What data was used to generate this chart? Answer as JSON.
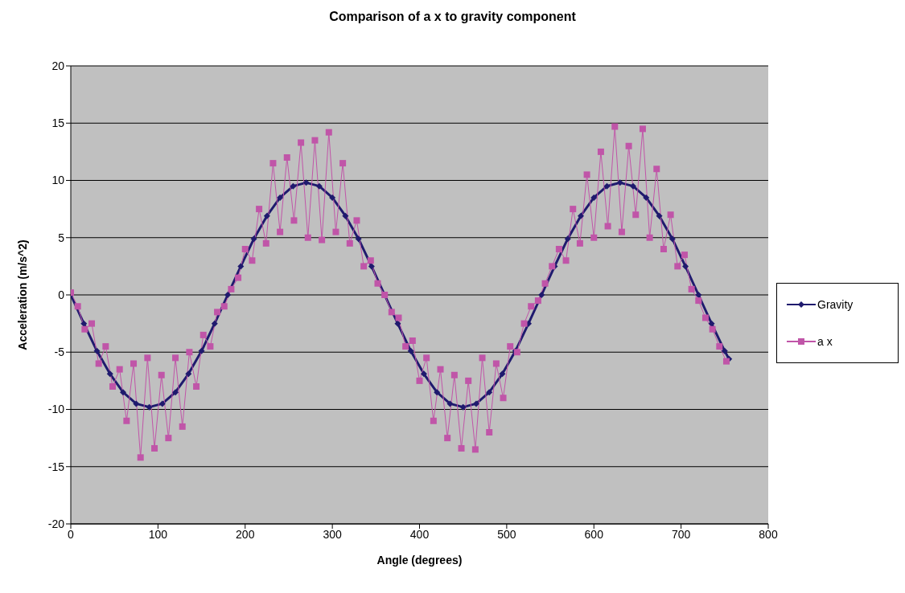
{
  "chart_data": {
    "type": "line",
    "title": "Comparison of a x to gravity component",
    "xlabel": "Angle (degrees)",
    "ylabel": "Acceleration (m/s^2)",
    "xlim": [
      0,
      800
    ],
    "xticks": [
      0,
      100,
      200,
      300,
      400,
      500,
      600,
      700,
      800
    ],
    "ylim": [
      -20,
      20
    ],
    "yticks": [
      -20,
      -15,
      -10,
      -5,
      0,
      5,
      10,
      15,
      20
    ],
    "grid": "y",
    "legend": "right",
    "series": [
      {
        "name": "Gravity",
        "color": "#1f1a6e",
        "marker": "diamond",
        "x": [
          0,
          15,
          30,
          45,
          60,
          75,
          90,
          105,
          120,
          135,
          150,
          165,
          180,
          195,
          210,
          225,
          240,
          255,
          270,
          285,
          300,
          315,
          330,
          345,
          360,
          375,
          390,
          405,
          420,
          435,
          450,
          465,
          480,
          495,
          510,
          525,
          540,
          555,
          570,
          585,
          600,
          615,
          630,
          645,
          660,
          675,
          690,
          705,
          720,
          735,
          750,
          755
        ],
        "values": [
          0,
          -2.5,
          -4.9,
          -6.9,
          -8.5,
          -9.5,
          -9.8,
          -9.5,
          -8.5,
          -6.9,
          -4.9,
          -2.5,
          0,
          2.5,
          4.9,
          6.9,
          8.5,
          9.5,
          9.8,
          9.5,
          8.5,
          6.9,
          4.9,
          2.5,
          0,
          -2.5,
          -4.9,
          -6.9,
          -8.5,
          -9.5,
          -9.8,
          -9.5,
          -8.5,
          -6.9,
          -4.9,
          -2.5,
          0,
          2.5,
          4.9,
          6.9,
          8.5,
          9.5,
          9.8,
          9.5,
          8.5,
          6.9,
          4.9,
          2.5,
          0,
          -2.5,
          -4.9,
          -5.6
        ]
      },
      {
        "name": "a x",
        "color": "#c055a8",
        "marker": "square",
        "x": [
          0,
          8,
          16,
          24,
          32,
          40,
          48,
          56,
          64,
          72,
          80,
          88,
          96,
          104,
          112,
          120,
          128,
          136,
          144,
          152,
          160,
          168,
          176,
          184,
          192,
          200,
          208,
          216,
          224,
          232,
          240,
          248,
          256,
          264,
          272,
          280,
          288,
          296,
          304,
          312,
          320,
          328,
          336,
          344,
          352,
          360,
          368,
          376,
          384,
          392,
          400,
          408,
          416,
          424,
          432,
          440,
          448,
          456,
          464,
          472,
          480,
          488,
          496,
          504,
          512,
          520,
          528,
          536,
          544,
          552,
          560,
          568,
          576,
          584,
          592,
          600,
          608,
          616,
          624,
          632,
          640,
          648,
          656,
          664,
          672,
          680,
          688,
          696,
          704,
          712,
          720,
          728,
          736,
          744,
          752
        ],
        "values": [
          0.2,
          -1,
          -3,
          -2.5,
          -6,
          -4.5,
          -8,
          -6.5,
          -11,
          -6,
          -14.2,
          -5.5,
          -13.4,
          -7,
          -12.5,
          -5.5,
          -11.5,
          -5,
          -8,
          -3.5,
          -4.5,
          -1.5,
          -1,
          0.5,
          1.5,
          4,
          3,
          7.5,
          4.5,
          11.5,
          5.5,
          12,
          6.5,
          13.3,
          5,
          13.5,
          4.8,
          14.2,
          5.5,
          11.5,
          4.5,
          6.5,
          2.5,
          3,
          1,
          0,
          -1.5,
          -2,
          -4.5,
          -4,
          -7.5,
          -5.5,
          -11,
          -6.5,
          -12.5,
          -7,
          -13.4,
          -7.5,
          -13.5,
          -5.5,
          -12,
          -6,
          -9,
          -4.5,
          -5,
          -2.5,
          -1,
          -0.5,
          1,
          2.5,
          4,
          3,
          7.5,
          4.5,
          10.5,
          5,
          12.5,
          6,
          14.7,
          5.5,
          13,
          7,
          14.5,
          5,
          11,
          4,
          7,
          2.5,
          3.5,
          0.5,
          -0.5,
          -2,
          -3,
          -4.5,
          -5.8
        ]
      }
    ]
  }
}
